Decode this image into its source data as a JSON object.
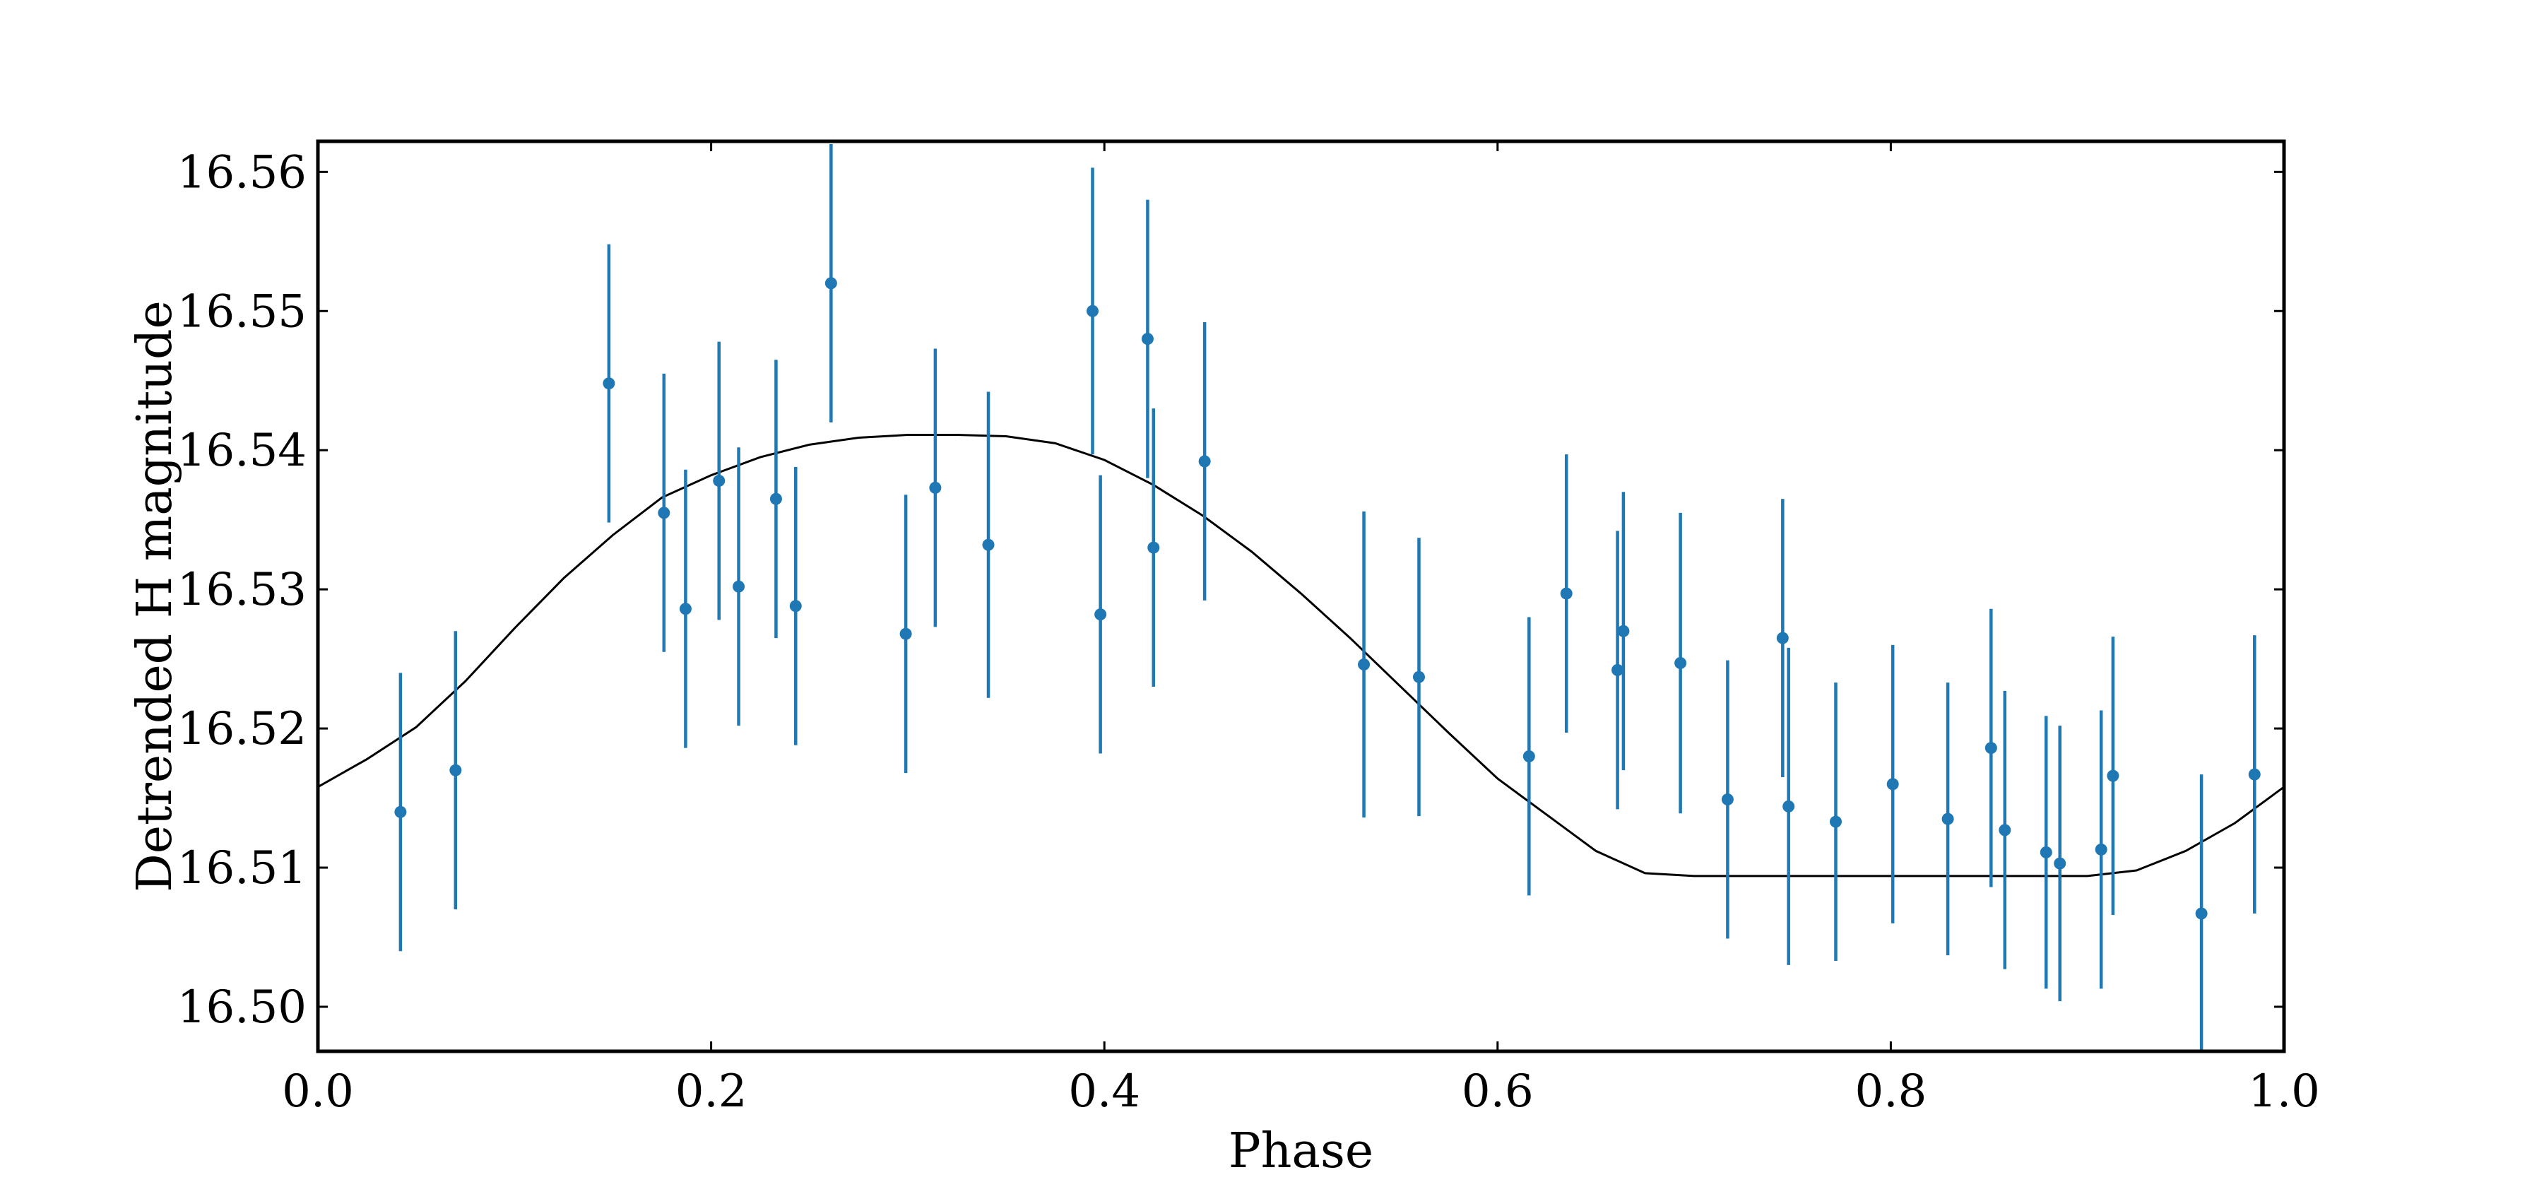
{
  "chart_data": {
    "type": "scatter",
    "xlabel": "Phase",
    "ylabel": "Detrended H magnitude",
    "xlim": [
      0.0,
      1.0
    ],
    "ylim": [
      16.4968,
      16.5622
    ],
    "xticks": [
      "0.0",
      "0.2",
      "0.4",
      "0.6",
      "0.8",
      "1.0"
    ],
    "xtick_values": [
      0.0,
      0.2,
      0.4,
      0.6,
      0.8,
      1.0
    ],
    "yticks": [
      "16.50",
      "16.51",
      "16.52",
      "16.53",
      "16.54",
      "16.55",
      "16.56"
    ],
    "ytick_values": [
      16.5,
      16.51,
      16.52,
      16.53,
      16.54,
      16.55,
      16.56
    ],
    "grid": false,
    "colors": {
      "points": "#1f77b4",
      "model": "#000000"
    },
    "series": [
      {
        "kind": "errorbar",
        "x": [
          0.042,
          0.07,
          0.148,
          0.176,
          0.187,
          0.204,
          0.214,
          0.233,
          0.243,
          0.261,
          0.299,
          0.314,
          0.341,
          0.394,
          0.398,
          0.422,
          0.425,
          0.451,
          0.532,
          0.56,
          0.616,
          0.635,
          0.661,
          0.664,
          0.693,
          0.717,
          0.745,
          0.748,
          0.772,
          0.801,
          0.829,
          0.851,
          0.858,
          0.879,
          0.886,
          0.907,
          0.913,
          0.958,
          0.985
        ],
        "y": [
          16.514,
          16.517,
          16.5448,
          16.5355,
          16.5286,
          16.5378,
          16.5302,
          16.5365,
          16.5288,
          16.552,
          16.5268,
          16.5373,
          16.5332,
          16.55,
          16.5282,
          16.548,
          16.533,
          16.5392,
          16.5246,
          16.5237,
          16.518,
          16.5297,
          16.5242,
          16.527,
          16.5247,
          16.5149,
          16.5265,
          16.5144,
          16.5133,
          16.516,
          16.5135,
          16.5186,
          16.5127,
          16.5111,
          16.5103,
          16.5113,
          16.5166,
          16.5067,
          16.5167
        ],
        "yerr": [
          0.01,
          0.01,
          0.01,
          0.01,
          0.01,
          0.01,
          0.01,
          0.01,
          0.01,
          0.01,
          0.01,
          0.01,
          0.011,
          0.0103,
          0.01,
          0.01,
          0.01,
          0.01,
          0.011,
          0.01,
          0.01,
          0.01,
          0.01,
          0.01,
          0.0108,
          0.01,
          0.01,
          0.0114,
          0.01,
          0.01,
          0.0098,
          0.01,
          0.01,
          0.0098,
          0.0099,
          0.01,
          0.01,
          0.01,
          0.01
        ]
      },
      {
        "kind": "model-line",
        "x": [
          0.0,
          0.025,
          0.05,
          0.075,
          0.1,
          0.125,
          0.15,
          0.175,
          0.2,
          0.225,
          0.25,
          0.275,
          0.3,
          0.325,
          0.35,
          0.375,
          0.4,
          0.425,
          0.45,
          0.475,
          0.5,
          0.525,
          0.55,
          0.575,
          0.6,
          0.625,
          0.65,
          0.675,
          0.7,
          0.725,
          0.75,
          0.775,
          0.8,
          0.825,
          0.85,
          0.875,
          0.9,
          0.925,
          0.95,
          0.975,
          1.0
        ],
        "y": [
          16.5158,
          16.5178,
          16.5201,
          16.5234,
          16.5272,
          16.5308,
          16.5339,
          16.5366,
          16.5382,
          16.5395,
          16.5404,
          16.5409,
          16.5411,
          16.5411,
          16.541,
          16.5405,
          16.5393,
          16.5375,
          16.5353,
          16.5327,
          16.5297,
          16.5265,
          16.5231,
          16.5197,
          16.5164,
          16.5138,
          16.5112,
          16.5096,
          16.5094,
          16.5094,
          16.5094,
          16.5094,
          16.5094,
          16.5094,
          16.5094,
          16.5094,
          16.5094,
          16.5098,
          16.5112,
          16.5132,
          16.5158
        ]
      }
    ]
  }
}
